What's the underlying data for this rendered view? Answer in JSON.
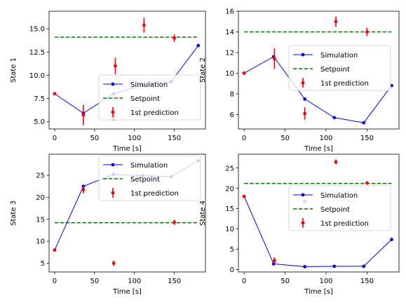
{
  "chart_data": [
    {
      "type": "line",
      "ylabel": "State 1",
      "xlabel": "Time [s]",
      "xlim": [
        -7,
        189
      ],
      "ylim": [
        4.2,
        16.9
      ],
      "xticks": [
        0,
        50,
        100,
        150
      ],
      "yticks": [
        5.0,
        7.5,
        10.0,
        12.5,
        15.0
      ],
      "ytick_labels": [
        "5.0",
        "7.5",
        "10.0",
        "12.5",
        "15.0"
      ],
      "legend": "lower-right",
      "setpoint": {
        "name": "Setpoint",
        "x": [
          0,
          180
        ],
        "y": 14.1,
        "color": "#008000"
      },
      "series": [
        {
          "name": "Simulation",
          "color": "#0000ff",
          "x": [
            0,
            36,
            74,
            110,
            146,
            180
          ],
          "y": [
            8.0,
            5.9,
            8.0,
            8.9,
            9.3,
            13.2
          ]
        },
        {
          "name": "1st prediction",
          "color": "#ff0000",
          "x": [
            0,
            36,
            74,
            76,
            112,
            150
          ],
          "y": [
            8.0,
            5.7,
            5.5,
            11.0,
            15.4,
            14.0
          ],
          "err": [
            0,
            1.1,
            0.4,
            0.9,
            0.8,
            0.4
          ]
        }
      ]
    },
    {
      "type": "line",
      "ylabel": "State 2",
      "xlabel": "Time [s]",
      "xlim": [
        -7,
        189
      ],
      "ylim": [
        4.6,
        16.0
      ],
      "xticks": [
        0,
        50,
        100,
        150
      ],
      "yticks": [
        6,
        8,
        10,
        12,
        14,
        16
      ],
      "ytick_labels": [
        "6",
        "8",
        "10",
        "12",
        "14",
        "16"
      ],
      "legend": "center-right",
      "setpoint": {
        "name": "Setpoint",
        "x": [
          0,
          180
        ],
        "y": 14.0,
        "color": "#008000"
      },
      "series": [
        {
          "name": "Simulation",
          "color": "#0000ff",
          "x": [
            0,
            36,
            74,
            110,
            146,
            180
          ],
          "y": [
            10.0,
            11.6,
            7.5,
            5.7,
            5.2,
            8.8
          ]
        },
        {
          "name": "1st prediction",
          "color": "#ff0000",
          "x": [
            0,
            37,
            74,
            112,
            150
          ],
          "y": [
            10.0,
            11.4,
            6.1,
            15.0,
            14.0
          ],
          "err": [
            0,
            1.0,
            0.6,
            0.5,
            0.4
          ]
        }
      ]
    },
    {
      "type": "line",
      "ylabel": "State 3",
      "xlabel": "Time [s]",
      "xlim": [
        -7,
        189
      ],
      "ylim": [
        3.0,
        29.8
      ],
      "xticks": [
        0,
        50,
        100,
        150
      ],
      "yticks": [
        5,
        10,
        15,
        20,
        25
      ],
      "ytick_labels": [
        "5",
        "10",
        "15",
        "20",
        "25"
      ],
      "legend": "upper-right",
      "setpoint": {
        "name": "Setpoint",
        "x": [
          0,
          180
        ],
        "y": 14.2,
        "color": "#008000"
      },
      "series": [
        {
          "name": "Simulation",
          "color": "#0000ff",
          "x": [
            0,
            36,
            74,
            110,
            146,
            180
          ],
          "y": [
            8.0,
            22.5,
            25.2,
            24.9,
            24.7,
            28.3
          ]
        },
        {
          "name": "1st prediction",
          "color": "#ff0000",
          "x": [
            0,
            36,
            74,
            112,
            150
          ],
          "y": [
            8.0,
            21.7,
            5.0,
            20.5,
            14.3
          ],
          "err": [
            0,
            0.8,
            0.6,
            0.5,
            0.6
          ]
        }
      ]
    },
    {
      "type": "line",
      "ylabel": "State 4",
      "xlabel": "Time [s]",
      "xlim": [
        -7,
        189
      ],
      "ylim": [
        -0.6,
        28.4
      ],
      "xticks": [
        0,
        50,
        100,
        150
      ],
      "yticks": [
        0,
        5,
        10,
        15,
        20,
        25
      ],
      "ytick_labels": [
        "0",
        "5",
        "10",
        "15",
        "20",
        "25"
      ],
      "legend": "center-right",
      "setpoint": {
        "name": "Setpoint",
        "x": [
          0,
          180
        ],
        "y": 21.2,
        "color": "#008000"
      },
      "series": [
        {
          "name": "Simulation",
          "color": "#0000ff",
          "x": [
            0,
            36,
            74,
            110,
            146,
            180
          ],
          "y": [
            18.0,
            1.4,
            0.7,
            0.8,
            0.8,
            7.4
          ]
        },
        {
          "name": "1st prediction",
          "color": "#ff0000",
          "x": [
            0,
            37,
            74,
            112,
            150
          ],
          "y": [
            18.0,
            2.2,
            16.8,
            26.5,
            21.3
          ],
          "err": [
            0,
            0.8,
            0.6,
            0.6,
            0.4
          ]
        }
      ]
    }
  ]
}
